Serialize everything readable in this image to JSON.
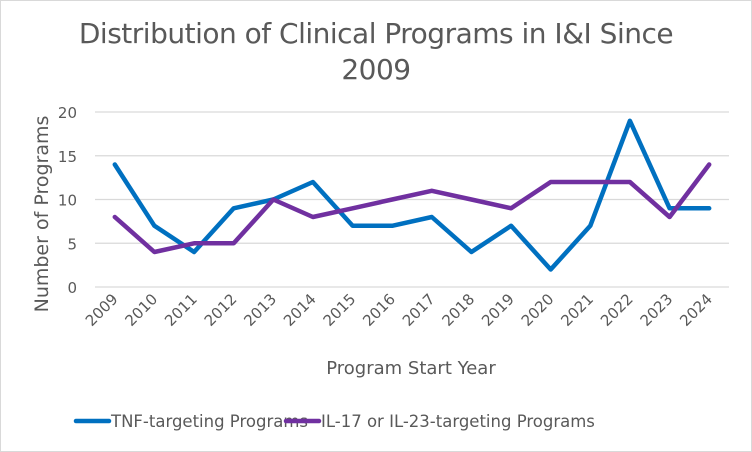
{
  "chart_data": {
    "type": "line",
    "title": "Distribution of Clinical Programs in I&I Since 2009",
    "title_lines": [
      "Distribution of Clinical Programs in I&I Since",
      "2009"
    ],
    "xlabel": "Program Start Year",
    "ylabel": "Number of Programs",
    "ylim": [
      0,
      20
    ],
    "yticks": [
      "0",
      "5",
      "10",
      "15",
      "20"
    ],
    "ytick_values": [
      0,
      5,
      10,
      15,
      20
    ],
    "grid": true,
    "legend_position": "bottom",
    "categories": [
      "2009",
      "2010",
      "2011",
      "2012",
      "2013",
      "2014",
      "2015",
      "2016",
      "2017",
      "2018",
      "2019",
      "2020",
      "2021",
      "2022",
      "2023",
      "2024"
    ],
    "series": [
      {
        "name": "TNF-targeting Programs",
        "color": "#0070c0",
        "values": [
          14,
          7,
          4,
          9,
          10,
          12,
          7,
          7,
          8,
          4,
          7,
          2,
          7,
          19,
          9,
          9
        ]
      },
      {
        "name": "IL-17 or IL-23-targeting Programs",
        "color": "#7030a0",
        "values": [
          8,
          4,
          5,
          5,
          10,
          8,
          9,
          10,
          11,
          10,
          9,
          12,
          12,
          12,
          8,
          14
        ]
      }
    ]
  }
}
